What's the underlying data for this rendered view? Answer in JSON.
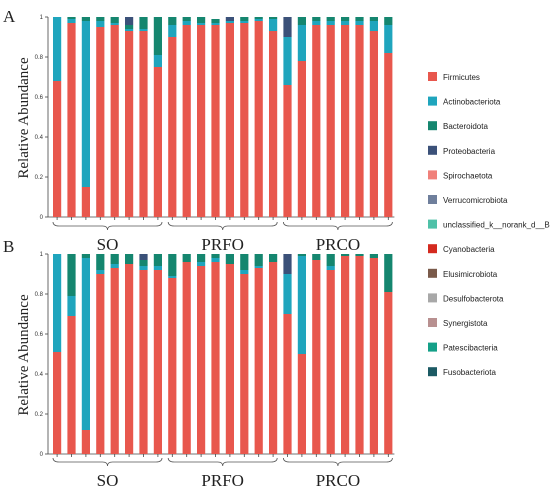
{
  "chart_data": [
    {
      "type": "bar",
      "stacked": true,
      "panel": "A",
      "ylabel": "Relative Abundance",
      "ylim": [
        0,
        1
      ],
      "yticks": [
        "0",
        "0.2",
        "0.4",
        "0.6",
        "0.8",
        "1"
      ],
      "groups": [
        "SO",
        "PRFO",
        "PRCO"
      ],
      "bars_per_group": [
        8,
        8,
        8
      ],
      "series": [
        {
          "name": "Firmicutes",
          "values": [
            0.68,
            0.97,
            0.15,
            0.95,
            0.96,
            0.93,
            0.93,
            0.75,
            0.9,
            0.96,
            0.96,
            0.96,
            0.97,
            0.97,
            0.98,
            0.93,
            0.66,
            0.78,
            0.96,
            0.96,
            0.96,
            0.96,
            0.93,
            0.82
          ]
        },
        {
          "name": "Actinobacteriota",
          "values": [
            0.32,
            0.02,
            0.83,
            0.03,
            0.01,
            0.01,
            0.01,
            0.06,
            0.06,
            0.02,
            0.01,
            0.01,
            0.01,
            0.01,
            0.01,
            0.06,
            0.24,
            0.18,
            0.02,
            0.02,
            0.02,
            0.02,
            0.05,
            0.14
          ]
        },
        {
          "name": "Bacteroidota",
          "values": [
            0,
            0.01,
            0.02,
            0.02,
            0.03,
            0.02,
            0.06,
            0.19,
            0.04,
            0.02,
            0.03,
            0.02,
            0,
            0.02,
            0.01,
            0.01,
            0,
            0.04,
            0.02,
            0.02,
            0.02,
            0.02,
            0.02,
            0.04
          ]
        },
        {
          "name": "Proteobacteria",
          "values": [
            0,
            0,
            0,
            0,
            0,
            0.04,
            0,
            0,
            0,
            0,
            0,
            0,
            0.02,
            0,
            0,
            0,
            0.1,
            0,
            0,
            0,
            0,
            0,
            0,
            0
          ]
        }
      ]
    },
    {
      "type": "bar",
      "stacked": true,
      "panel": "B",
      "ylabel": "Relative Abundance",
      "ylim": [
        0,
        1
      ],
      "yticks": [
        "0",
        "0.2",
        "0.4",
        "0.6",
        "0.8",
        "1"
      ],
      "groups": [
        "SO",
        "PRFO",
        "PRCO"
      ],
      "bars_per_group": [
        8,
        8,
        8
      ],
      "series": [
        {
          "name": "Firmicutes",
          "values": [
            0.51,
            0.69,
            0.12,
            0.9,
            0.93,
            0.95,
            0.92,
            0.92,
            0.88,
            0.96,
            0.94,
            0.96,
            0.95,
            0.9,
            0.93,
            0.96,
            0.7,
            0.5,
            0.97,
            0.92,
            0.99,
            0.99,
            0.98,
            0.81
          ]
        },
        {
          "name": "Actinobacteriota",
          "values": [
            0.49,
            0.1,
            0.86,
            0.02,
            0.02,
            0,
            0.02,
            0.02,
            0.01,
            0,
            0.02,
            0.02,
            0,
            0.02,
            0.01,
            0,
            0.2,
            0.49,
            0,
            0.02,
            0,
            0,
            0,
            0
          ]
        },
        {
          "name": "Bacteroidota",
          "values": [
            0,
            0.21,
            0.02,
            0.08,
            0.05,
            0.05,
            0.03,
            0.06,
            0.11,
            0.04,
            0.04,
            0.02,
            0.05,
            0.08,
            0.06,
            0.04,
            0,
            0.01,
            0.03,
            0.06,
            0.01,
            0.01,
            0.02,
            0.19
          ]
        },
        {
          "name": "Proteobacteria",
          "values": [
            0,
            0,
            0,
            0,
            0,
            0,
            0.03,
            0,
            0,
            0,
            0,
            0,
            0,
            0,
            0,
            0,
            0.1,
            0,
            0,
            0,
            0,
            0,
            0,
            0
          ]
        }
      ]
    }
  ],
  "legend": [
    {
      "name": "Firmicutes",
      "color": "#e8574d"
    },
    {
      "name": "Actinobacteriota",
      "color": "#1fa5bd"
    },
    {
      "name": "Bacteroidota",
      "color": "#15866f"
    },
    {
      "name": "Proteobacteria",
      "color": "#3b5179"
    },
    {
      "name": "Spirochaetota",
      "color": "#f0807a"
    },
    {
      "name": "Verrucomicrobiota",
      "color": "#6f7f9c"
    },
    {
      "name": "unclassified_k__norank_d__Bacteria",
      "color": "#4fc1a8"
    },
    {
      "name": "Cyanobacteria",
      "color": "#d42a1f"
    },
    {
      "name": "Elusimicrobiota",
      "color": "#7a5a4a"
    },
    {
      "name": "Desulfobacterota",
      "color": "#a8a8a8"
    },
    {
      "name": "Synergistota",
      "color": "#b89090"
    },
    {
      "name": "Patescibacteria",
      "color": "#14a088"
    },
    {
      "name": "Fusobacteriota",
      "color": "#1c5a64"
    }
  ]
}
